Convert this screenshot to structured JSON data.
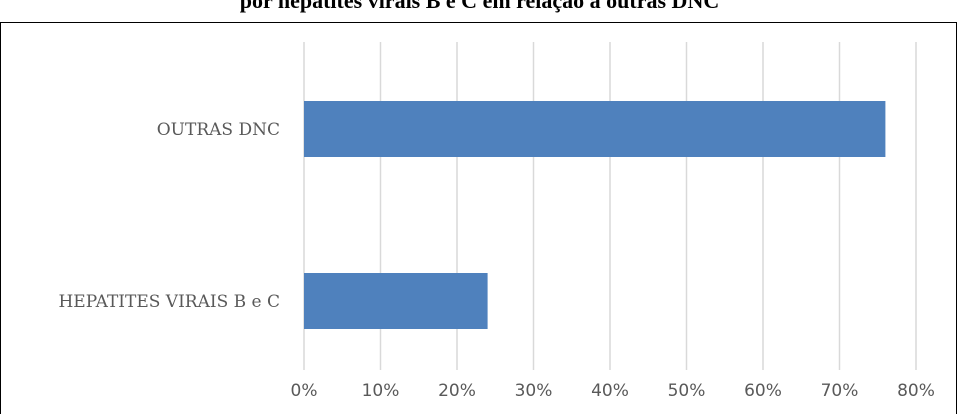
{
  "chart_data": {
    "type": "bar",
    "orientation": "horizontal",
    "title": "por hepatites virais B e C em relação a outras DNC",
    "categories": [
      "OUTRAS DNC",
      "HEPATITES VIRAIS B e C"
    ],
    "values": [
      0.76,
      0.24
    ],
    "series": [
      {
        "values": [
          0.76,
          0.24
        ],
        "color": "#4f81bd"
      }
    ],
    "xlim": [
      0,
      0.8
    ],
    "xticks": [
      0,
      0.1,
      0.2,
      0.3,
      0.4,
      0.5,
      0.6,
      0.7,
      0.8
    ],
    "xtick_labels": [
      "0%",
      "10%",
      "20%",
      "30%",
      "40%",
      "50%",
      "60%",
      "70%",
      "80%"
    ],
    "xlabel": "",
    "ylabel": "",
    "grid": "vertical",
    "legend": "none",
    "gridline_color": "#d9d9d9",
    "label_color": "#595959"
  }
}
